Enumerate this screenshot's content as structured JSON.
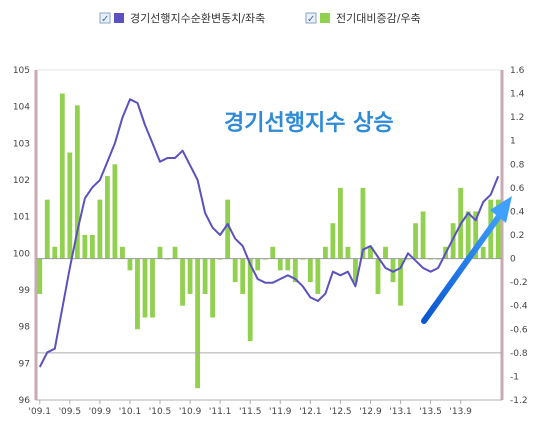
{
  "chart_data": {
    "type": "bar+line",
    "legend": {
      "placement": "top-center",
      "items": [
        {
          "label": "경기선행지수순환변동치/좌축",
          "color": "#5b52c0",
          "checked": true
        },
        {
          "label": "전기대비증감/우축",
          "color": "#92d050",
          "checked": true
        }
      ]
    },
    "annotation": "경기선행지수 상승",
    "x_tick_labels": [
      "'09.1",
      "'09.5",
      "'09.9",
      "'10.1",
      "'10.5",
      "'10.9",
      "'11.1",
      "'11.5",
      "'11.9",
      "'12.1",
      "'12.5",
      "'12.9",
      "'13.1",
      "'13.5",
      "'13.9"
    ],
    "left_axis": {
      "min": 96,
      "max": 105,
      "ticks": [
        96,
        97,
        98,
        99,
        100,
        101,
        102,
        103,
        104,
        105
      ]
    },
    "right_axis": {
      "min": -1.2,
      "max": 1.6,
      "ticks": [
        "-1.2",
        "-1",
        "-0.8",
        "-0.6",
        "-0.4",
        "-0.2",
        "0",
        "0.2",
        "0.4",
        "0.6",
        "0.8",
        "1",
        "1.2",
        "1.4",
        "1.6"
      ]
    },
    "series": [
      {
        "axis": "left",
        "kind": "line",
        "color": "#5b52c0",
        "values": [
          96.9,
          97.3,
          97.4,
          98.5,
          99.6,
          100.6,
          101.5,
          101.8,
          102.0,
          102.5,
          103.0,
          103.7,
          104.2,
          104.1,
          103.5,
          103.0,
          102.5,
          102.6,
          102.6,
          102.8,
          102.4,
          102.0,
          101.1,
          100.7,
          100.5,
          100.8,
          100.4,
          100.2,
          99.7,
          99.3,
          99.2,
          99.2,
          99.3,
          99.4,
          99.3,
          99.1,
          98.8,
          98.7,
          98.9,
          99.5,
          99.4,
          99.5,
          99.1,
          100.1,
          100.2,
          99.9,
          99.6,
          99.5,
          99.6,
          100.0,
          99.8,
          99.6,
          99.5,
          99.6,
          100.0,
          100.4,
          100.8,
          101.1,
          100.9,
          101.4,
          101.6,
          102.1
        ]
      },
      {
        "axis": "right",
        "kind": "bar",
        "color": "#92d050",
        "values": [
          -0.3,
          0.5,
          0.1,
          1.4,
          0.9,
          1.3,
          0.2,
          0.2,
          0.5,
          0.7,
          0.8,
          0.1,
          -0.1,
          -0.6,
          -0.5,
          -0.5,
          0.1,
          0.0,
          0.1,
          -0.4,
          -0.3,
          -1.1,
          -0.3,
          -0.5,
          0.0,
          0.5,
          -0.2,
          -0.3,
          -0.7,
          -0.1,
          0.0,
          0.1,
          -0.1,
          -0.1,
          -0.2,
          0.0,
          -0.2,
          -0.3,
          0.1,
          0.3,
          0.6,
          0.1,
          -0.2,
          0.6,
          0.1,
          -0.3,
          0.1,
          -0.2,
          -0.4,
          0.0,
          0.3,
          0.4,
          0.0,
          0.0,
          0.1,
          0.3,
          0.6,
          0.4,
          0.4,
          0.1,
          0.5,
          0.5
        ]
      }
    ]
  }
}
